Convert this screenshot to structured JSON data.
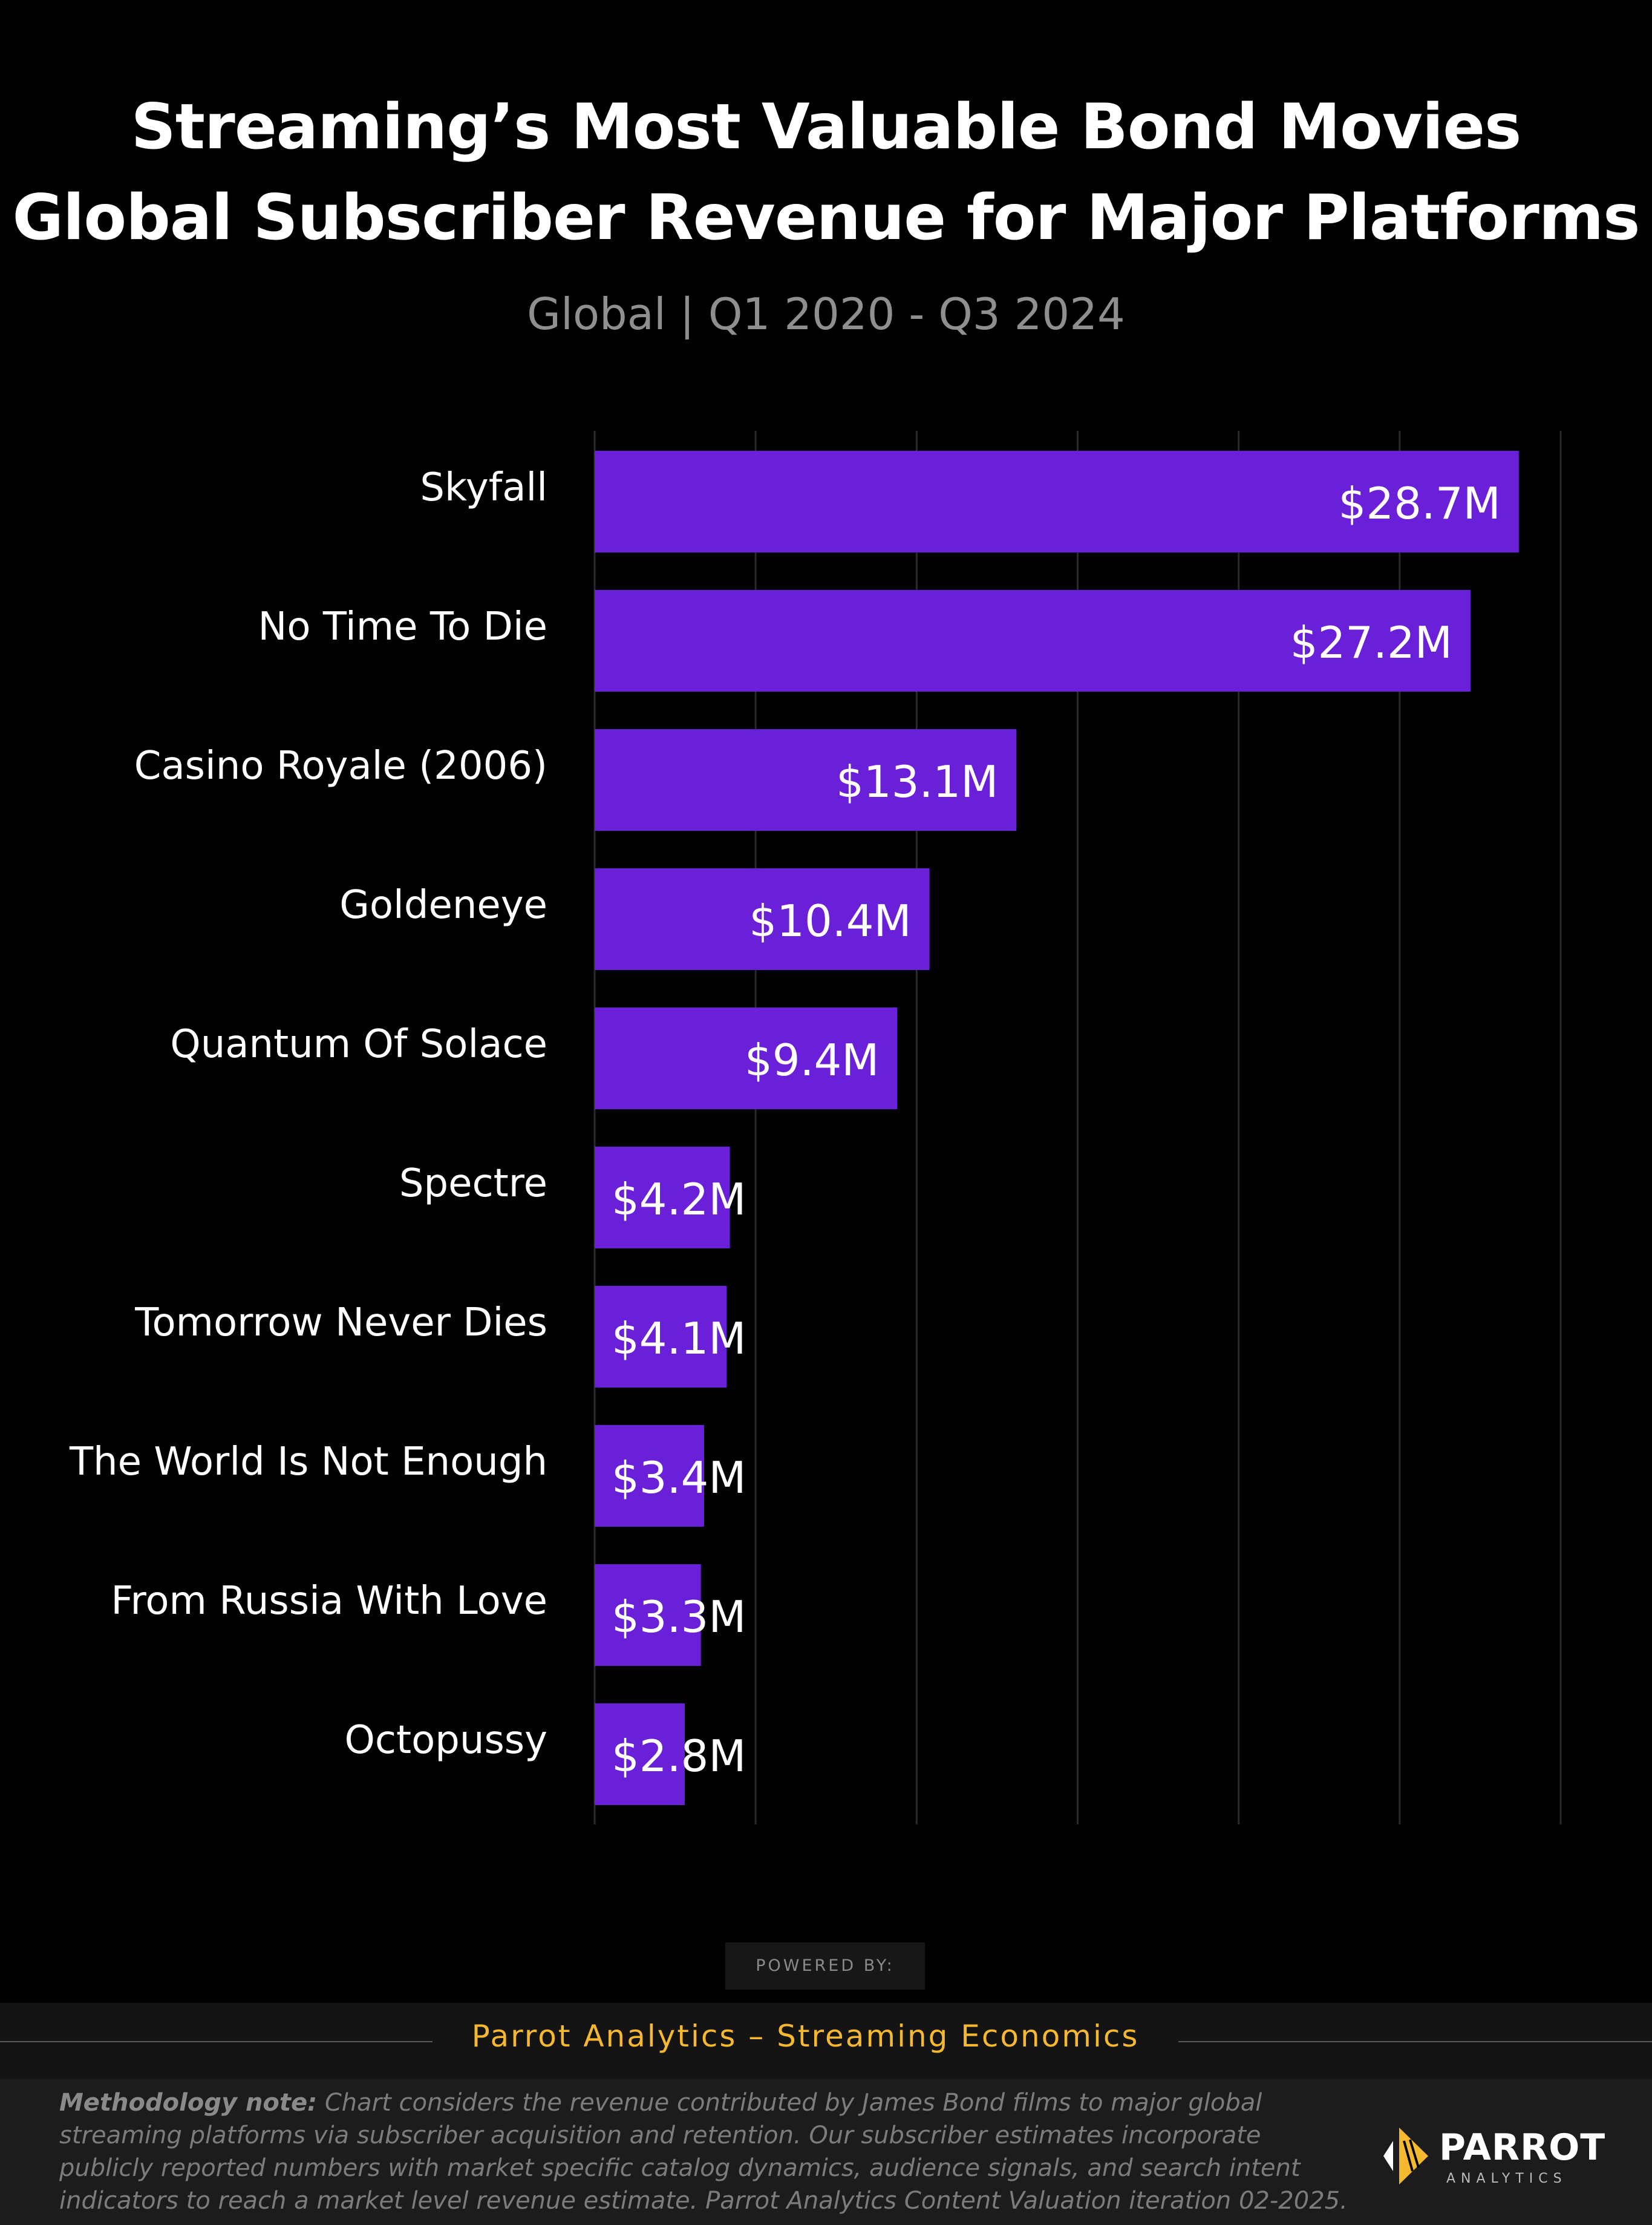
{
  "colors": {
    "background": "#000000",
    "bar": "#6a1fd9",
    "gridline": "#2b2b2b",
    "label_text": "#ffffff",
    "subtitle_text": "#8f8f8f",
    "footer_brand": "#f5b82e",
    "methodology_text": "#7c7c7c",
    "logo_accent": "#f5b82e"
  },
  "footer": {
    "powered_by": "POWERED BY:",
    "brand_line": "Parrot Analytics – Streaming Economics",
    "methodology_label": "Methodology note:",
    "methodology_text": "Chart considers the revenue contributed by James Bond films  to major global streaming platforms via subscriber acquisition and retention. Our subscriber estimates incorporate publicly reported numbers with market specific catalog dynamics, audience signals, and search intent indicators to reach a market level revenue estimate. Parrot Analytics Content Valuation iteration 02-2025.",
    "logo_word": "PARROT",
    "logo_sub": "ANALYTICS",
    "logo_icon": "parrot-logo-icon"
  },
  "chart_data": {
    "type": "bar",
    "orientation": "horizontal",
    "title": "Streaming’s Most Valuable Bond Movies",
    "title_line2": "Global Subscriber Revenue for Major Platforms",
    "subtitle": "Global  |  Q1 2020 - Q3 2024",
    "xlabel": "",
    "ylabel": "",
    "xlim": [
      0,
      30
    ],
    "grid": true,
    "legend": "none",
    "categories": [
      "Skyfall",
      "No Time To Die",
      "Casino Royale (2006)",
      "Goldeneye",
      "Quantum Of Solace",
      "Spectre",
      "Tomorrow Never Dies",
      "The World Is Not Enough",
      "From Russia With Love",
      "Octopussy"
    ],
    "values": [
      28.7,
      27.2,
      13.1,
      10.4,
      9.4,
      4.2,
      4.1,
      3.4,
      3.3,
      2.8
    ],
    "value_labels": [
      "$28.7M",
      "$27.2M",
      "$13.1M",
      "$10.4M",
      "$9.4M",
      "$4.2M",
      "$4.1M",
      "$3.4M",
      "$3.3M",
      "$2.8M"
    ],
    "unit": "$M"
  }
}
